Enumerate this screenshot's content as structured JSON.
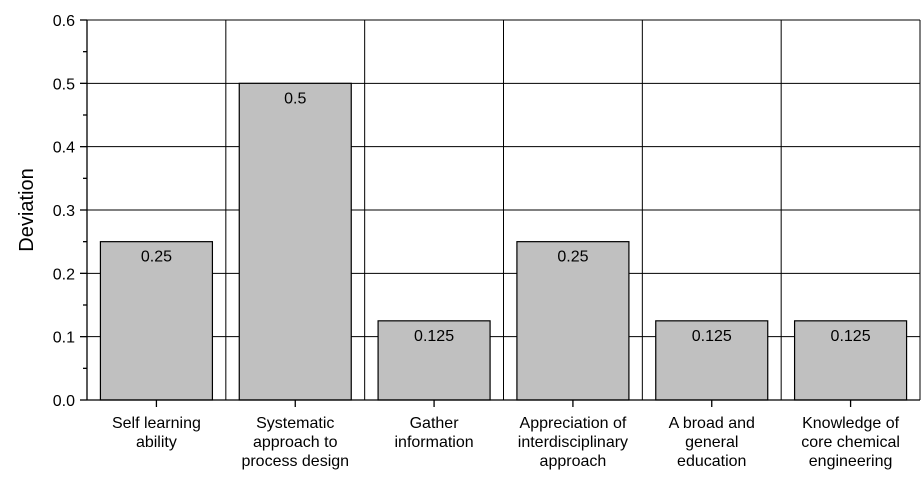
{
  "chart_data": {
    "type": "bar",
    "ylabel": "Deviation",
    "xlabel": "",
    "ylim": [
      0,
      0.6
    ],
    "yticks": [
      "0.0",
      "0.1",
      "0.2",
      "0.3",
      "0.4",
      "0.5",
      "0.6"
    ],
    "grid": true,
    "categories": [
      [
        "Self learning",
        "ability"
      ],
      [
        "Systematic",
        "approach to",
        "process design"
      ],
      [
        "Gather",
        "information"
      ],
      [
        "Appreciation of",
        "interdisciplinary",
        "approach"
      ],
      [
        "A broad and",
        "general",
        "education"
      ],
      [
        "Knowledge of",
        "core chemical",
        "engineering"
      ]
    ],
    "values": [
      0.25,
      0.5,
      0.125,
      0.25,
      0.125,
      0.125
    ],
    "data_labels": [
      "0.25",
      "0.5",
      "0.125",
      "0.25",
      "0.125",
      "0.125"
    ],
    "bar_color": "#c0c0c0",
    "bar_edge_color": "#000000"
  }
}
